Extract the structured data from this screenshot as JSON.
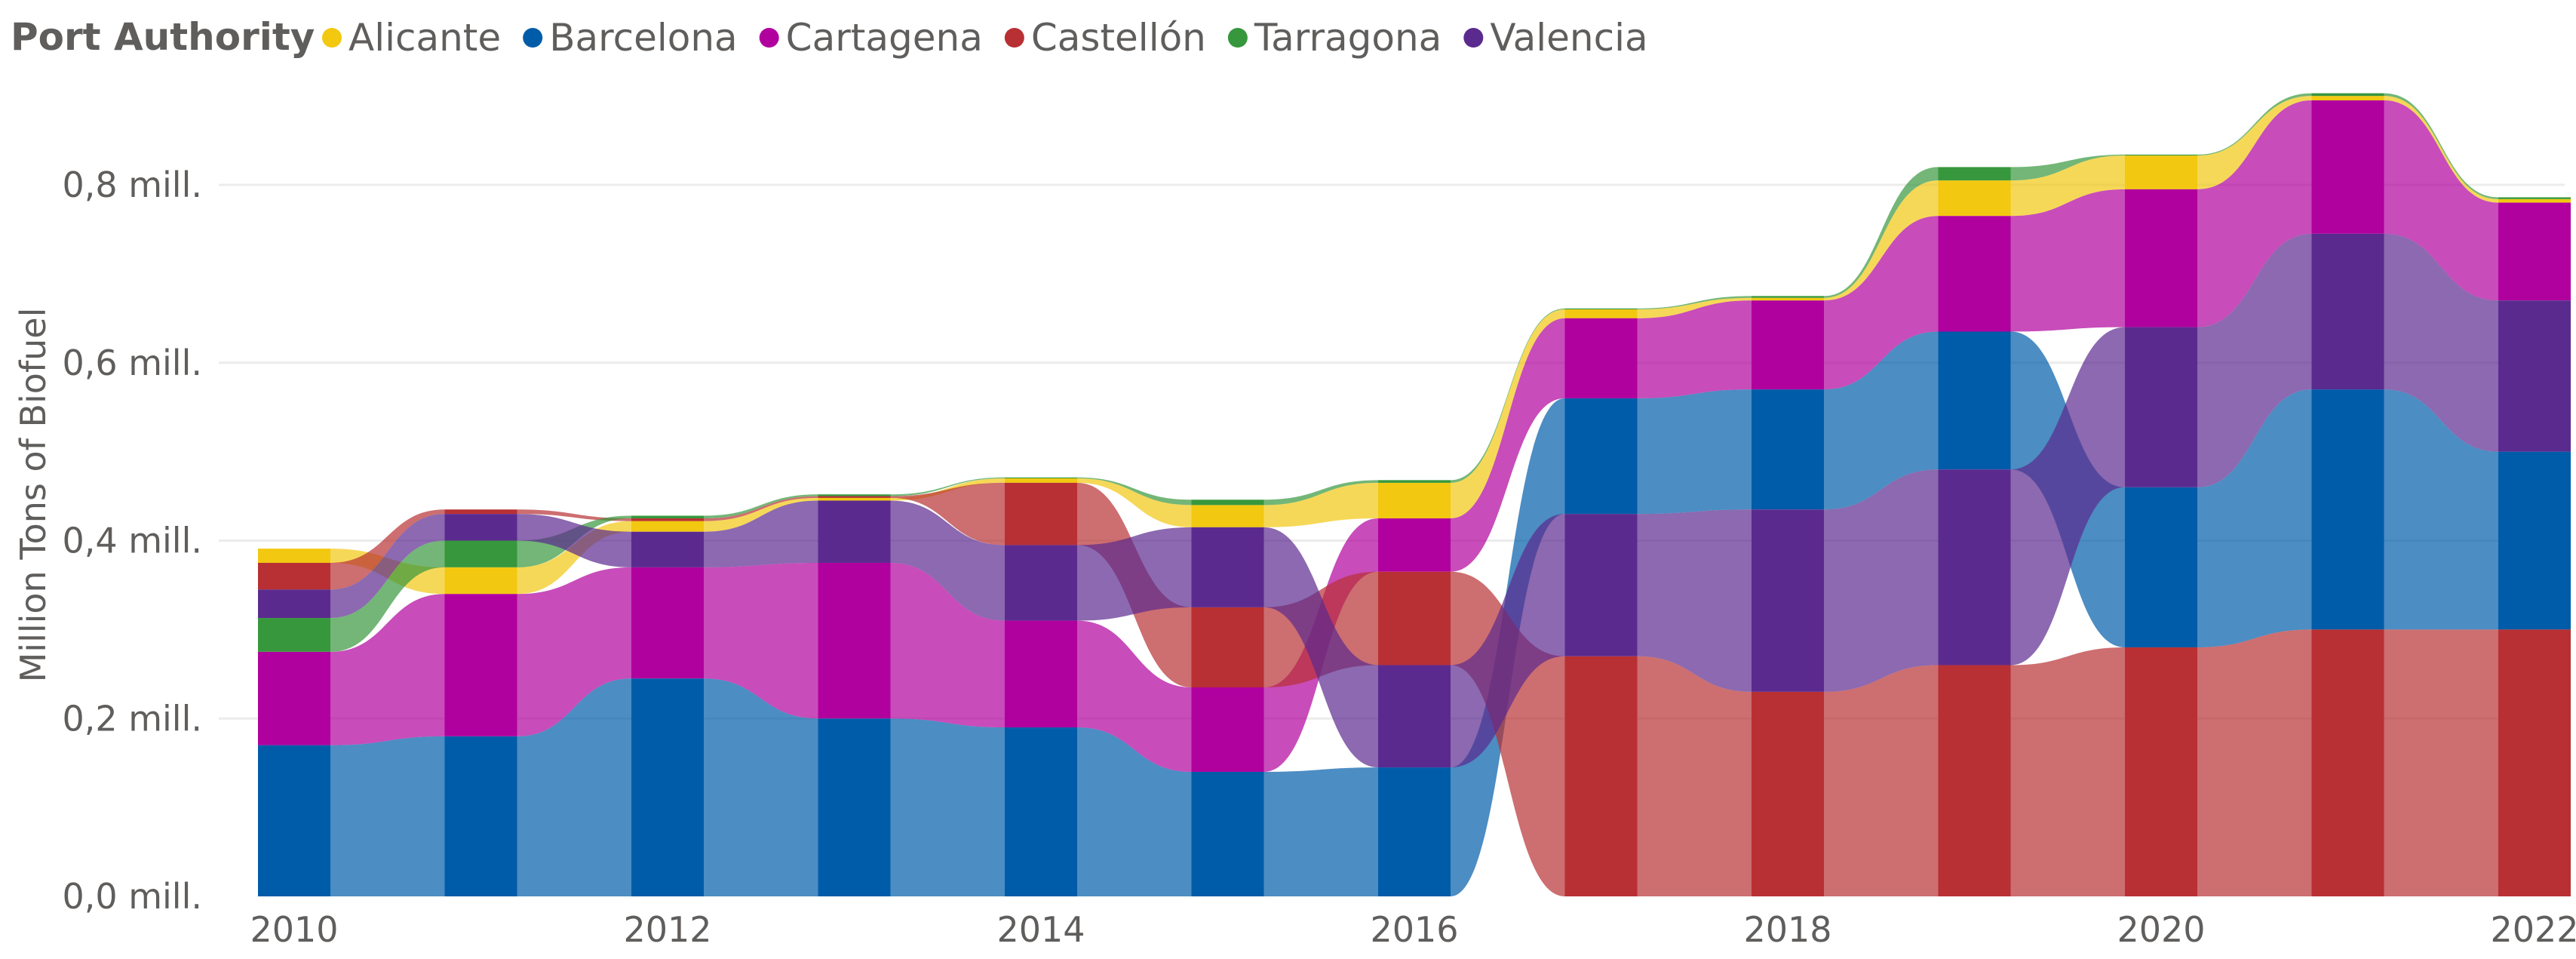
{
  "chart_data": {
    "type": "area",
    "subtype": "ribbon",
    "legend": {
      "title": "Port Authority",
      "position": "top-left",
      "entries": [
        "Alicante",
        "Barcelona",
        "Cartagena",
        "Castellón",
        "Tarragona",
        "Valencia"
      ]
    },
    "ylabel": "Million Tons of Biofuel",
    "xlabel": "",
    "ylim": [
      0,
      0.9
    ],
    "y_ticks": [
      {
        "value": 0.0,
        "label": "0,0 mill."
      },
      {
        "value": 0.2,
        "label": "0,2 mill."
      },
      {
        "value": 0.4,
        "label": "0,4 mill."
      },
      {
        "value": 0.6,
        "label": "0,6 mill."
      },
      {
        "value": 0.8,
        "label": "0,8 mill."
      }
    ],
    "x_ticks": [
      2010,
      2012,
      2014,
      2016,
      2018,
      2020,
      2022
    ],
    "x_tick_labels": [
      "2010",
      "2012",
      "2014",
      "2016",
      "2018",
      "2020",
      "2022"
    ],
    "x": [
      2010,
      2011,
      2012,
      2013,
      2014,
      2015,
      2016,
      2017,
      2018,
      2019,
      2020,
      2021,
      2022
    ],
    "colors": {
      "Alicante": "#f2c811",
      "Barcelona": "#005ca9",
      "Cartagena": "#b0009d",
      "Castellón": "#b83033",
      "Tarragona": "#37973d",
      "Valencia": "#5b2a8f"
    },
    "series": [
      {
        "name": "Alicante",
        "values": [
          0.016,
          0.03,
          0.012,
          0.003,
          0.005,
          0.025,
          0.04,
          0.01,
          0.003,
          0.04,
          0.038,
          0.005,
          0.004
        ]
      },
      {
        "name": "Barcelona",
        "values": [
          0.17,
          0.18,
          0.245,
          0.2,
          0.19,
          0.14,
          0.145,
          0.13,
          0.135,
          0.155,
          0.18,
          0.27,
          0.2
        ]
      },
      {
        "name": "Cartagena",
        "values": [
          0.105,
          0.16,
          0.125,
          0.175,
          0.12,
          0.095,
          0.06,
          0.09,
          0.1,
          0.13,
          0.155,
          0.15,
          0.11
        ]
      },
      {
        "name": "Castellón",
        "values": [
          0.03,
          0.005,
          0.003,
          0.002,
          0.07,
          0.09,
          0.105,
          0.27,
          0.23,
          0.26,
          0.28,
          0.3,
          0.3
        ]
      },
      {
        "name": "Tarragona",
        "values": [
          0.038,
          0.03,
          0.003,
          0.002,
          0.001,
          0.006,
          0.003,
          0.001,
          0.002,
          0.015,
          0.001,
          0.003,
          0.002
        ]
      },
      {
        "name": "Valencia",
        "values": [
          0.032,
          0.03,
          0.04,
          0.07,
          0.085,
          0.09,
          0.115,
          0.16,
          0.205,
          0.22,
          0.18,
          0.175,
          0.17
        ]
      }
    ]
  }
}
